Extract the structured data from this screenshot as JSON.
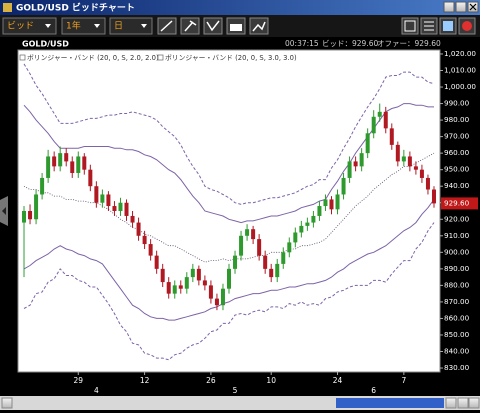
{
  "window": {
    "title": "GOLD/USD ビッドチャート",
    "price_type": "ビッド",
    "period": "1年",
    "interval": "日"
  },
  "header": {
    "symbol": "GOLD/USD",
    "time": "00:37:15",
    "bid": "ビッド：929.60",
    "offer": "オファー：929.60"
  },
  "chart_data": {
    "type": "candlestick",
    "up_color": "#2e9a2e",
    "down_color": "#b01822",
    "ylim": [
      827.6,
      1022.4
    ],
    "yticks": [
      {
        "value": 830,
        "label": "830.00"
      },
      {
        "value": 840,
        "label": "840.00"
      },
      {
        "value": 850,
        "label": "850.00"
      },
      {
        "value": 860,
        "label": "860.00"
      },
      {
        "value": 870,
        "label": "870.00"
      },
      {
        "value": 880,
        "label": "880.00"
      },
      {
        "value": 890,
        "label": "890.00"
      },
      {
        "value": 900,
        "label": "900.00"
      },
      {
        "value": 910,
        "label": "910.00"
      },
      {
        "value": 920,
        "label": "920.00"
      },
      {
        "value": 930,
        "label": "930.00"
      },
      {
        "value": 940,
        "label": "940.00"
      },
      {
        "value": 950,
        "label": "950.00"
      },
      {
        "value": 960,
        "label": "960.00"
      },
      {
        "value": 970,
        "label": "970.00"
      },
      {
        "value": 980,
        "label": "980.00"
      },
      {
        "value": 990,
        "label": "990.00"
      },
      {
        "value": 1000,
        "label": "1,000.00"
      },
      {
        "value": 1010,
        "label": "1,010.00"
      },
      {
        "value": 1020,
        "label": "1,020.00"
      }
    ],
    "categories": [
      null,
      null,
      null,
      null,
      null,
      null,
      null,
      null,
      null,
      "29",
      null,
      null,
      null,
      null,
      null,
      null,
      null,
      null,
      null,
      null,
      "12",
      null,
      null,
      null,
      null,
      null,
      null,
      null,
      null,
      null,
      null,
      "26",
      null,
      null,
      null,
      null,
      null,
      null,
      null,
      null,
      null,
      "10",
      null,
      null,
      null,
      null,
      null,
      null,
      null,
      null,
      null,
      null,
      "24",
      null,
      null,
      null,
      null,
      null,
      null,
      null,
      null,
      null,
      null,
      "7",
      null,
      null,
      null,
      null,
      null
    ],
    "month_labels": [
      null,
      null,
      null,
      null,
      null,
      null,
      null,
      null,
      null,
      null,
      null,
      null,
      "4",
      null,
      null,
      null,
      null,
      null,
      null,
      null,
      null,
      null,
      null,
      null,
      null,
      null,
      null,
      null,
      null,
      null,
      null,
      null,
      null,
      null,
      null,
      "5",
      null,
      null,
      null,
      null,
      null,
      null,
      null,
      null,
      null,
      null,
      null,
      null,
      null,
      null,
      null,
      null,
      null,
      null,
      null,
      null,
      null,
      null,
      "6",
      null,
      null,
      null,
      null,
      null,
      null,
      null,
      null,
      null,
      null
    ],
    "open": [
      918,
      925,
      920,
      935,
      945,
      958,
      952,
      960,
      955,
      948,
      958,
      950,
      940,
      930,
      935,
      928,
      925,
      930,
      922,
      918,
      910,
      905,
      898,
      890,
      882,
      875,
      880,
      878,
      885,
      890,
      883,
      880,
      872,
      868,
      878,
      890,
      898,
      910,
      914,
      908,
      898,
      890,
      885,
      893,
      900,
      906,
      912,
      916,
      918,
      922,
      928,
      932,
      926,
      935,
      945,
      955,
      952,
      960,
      972,
      982,
      985,
      975,
      965,
      955,
      958,
      952,
      950,
      945,
      938
    ],
    "high": [
      928,
      929,
      938,
      948,
      962,
      961,
      964,
      963,
      958,
      961,
      960,
      953,
      943,
      938,
      937,
      931,
      933,
      932,
      925,
      921,
      913,
      908,
      901,
      893,
      885,
      883,
      883,
      888,
      893,
      892,
      886,
      883,
      875,
      881,
      893,
      901,
      913,
      917,
      916,
      911,
      901,
      893,
      896,
      903,
      909,
      915,
      919,
      921,
      925,
      931,
      935,
      934,
      938,
      948,
      958,
      958,
      963,
      975,
      986,
      990,
      988,
      978,
      967,
      962,
      961,
      955,
      953,
      947,
      940
    ],
    "low": [
      885,
      917,
      917,
      932,
      942,
      949,
      949,
      952,
      945,
      945,
      947,
      937,
      927,
      927,
      925,
      922,
      922,
      919,
      915,
      907,
      902,
      895,
      887,
      879,
      872,
      872,
      875,
      875,
      882,
      880,
      877,
      869,
      865,
      865,
      875,
      887,
      895,
      907,
      905,
      895,
      887,
      882,
      882,
      890,
      897,
      903,
      909,
      913,
      915,
      919,
      925,
      923,
      923,
      932,
      942,
      949,
      949,
      957,
      969,
      979,
      972,
      962,
      952,
      952,
      949,
      947,
      942,
      935,
      927
    ],
    "close": [
      925,
      920,
      935,
      945,
      958,
      952,
      960,
      955,
      948,
      958,
      950,
      940,
      930,
      935,
      928,
      925,
      930,
      922,
      918,
      910,
      905,
      898,
      890,
      882,
      875,
      880,
      878,
      885,
      890,
      883,
      880,
      872,
      868,
      878,
      890,
      898,
      910,
      914,
      908,
      898,
      890,
      885,
      893,
      900,
      906,
      912,
      916,
      918,
      922,
      928,
      932,
      926,
      935,
      945,
      955,
      952,
      960,
      972,
      982,
      985,
      975,
      965,
      955,
      958,
      952,
      950,
      945,
      938,
      929.6
    ],
    "last_price": {
      "value": 929.6,
      "label": "929.60"
    },
    "bands": [
      {
        "name": "ボリンジャー・バンド (20, 0, S, 2.0, 2.0)",
        "color": "#7d63a8",
        "middle_color": "#5a4a6a",
        "upper": [
          989,
          985,
          980,
          976,
          972,
          967,
          963,
          963,
          963,
          963,
          964,
          964,
          964,
          964,
          964,
          963,
          963,
          962,
          962,
          961,
          959,
          958,
          956,
          953,
          950,
          948,
          944,
          939,
          934,
          930,
          925,
          924,
          923,
          922,
          920,
          919,
          918,
          919,
          919,
          920,
          921,
          922,
          922,
          923,
          924,
          925,
          927,
          928,
          929,
          931,
          932,
          938,
          943,
          949,
          954,
          960,
          965,
          970,
          975,
          980,
          985,
          987,
          988,
          990,
          990,
          989,
          989,
          988,
          988
        ],
        "middle": [
          940,
          938,
          938,
          936,
          936,
          934,
          934,
          932,
          932,
          931,
          931,
          930,
          930,
          928,
          926,
          923,
          920,
          918,
          915,
          914,
          911,
          910,
          908,
          906,
          904,
          904,
          902,
          900,
          898,
          896,
          894,
          895,
          895,
          896,
          895,
          896,
          896,
          896,
          897,
          898,
          898,
          900,
          900,
          900,
          902,
          902,
          904,
          904,
          905,
          906,
          908,
          912,
          916,
          920,
          924,
          928,
          931,
          934,
          938,
          941,
          944,
          947,
          949,
          952,
          952,
          954,
          956,
          958,
          960
        ],
        "lower": [
          890,
          892,
          895,
          897,
          899,
          902,
          904,
          902,
          901,
          899,
          898,
          896,
          895,
          893,
          888,
          883,
          878,
          873,
          868,
          866,
          863,
          861,
          860,
          860,
          859,
          859,
          860,
          861,
          862,
          863,
          864,
          866,
          867,
          869,
          870,
          872,
          873,
          874,
          875,
          875,
          876,
          877,
          877,
          878,
          879,
          879,
          880,
          881,
          881,
          882,
          883,
          885,
          888,
          890,
          893,
          895,
          897,
          899,
          900,
          902,
          904,
          907,
          910,
          913,
          915,
          918,
          923,
          927,
          932
        ]
      },
      {
        "name": "ボリンジャー・バンド (20, 0, S, 3.0, 3.0)",
        "color": "#7d63a8",
        "upper": [
          1014,
          1008,
          1001,
          996,
          990,
          984,
          978,
          978,
          978,
          979,
          980,
          981,
          981,
          982,
          983,
          983,
          984,
          984,
          985,
          984,
          983,
          982,
          980,
          976,
          973,
          970,
          965,
          958,
          952,
          947,
          940,
          938,
          937,
          935,
          933,
          930,
          929,
          930,
          930,
          931,
          932,
          933,
          933,
          934,
          935,
          936,
          938,
          940,
          941,
          944,
          944,
          951,
          956,
          963,
          969,
          976,
          982,
          988,
          993,
          999,
          1006,
          1007,
          1007,
          1009,
          1009,
          1006,
          1006,
          1003,
          1002
        ],
        "lower": [
          866,
          868,
          875,
          876,
          882,
          884,
          890,
          886,
          886,
          883,
          882,
          879,
          879,
          874,
          869,
          863,
          856,
          852,
          845,
          844,
          839,
          838,
          836,
          836,
          835,
          838,
          839,
          842,
          844,
          845,
          848,
          852,
          853,
          857,
          857,
          862,
          863,
          862,
          864,
          865,
          864,
          867,
          867,
          866,
          869,
          868,
          870,
          868,
          869,
          868,
          872,
          873,
          876,
          877,
          879,
          880,
          880,
          880,
          883,
          883,
          882,
          887,
          891,
          895,
          895,
          902,
          906,
          913,
          918
        ]
      }
    ]
  }
}
